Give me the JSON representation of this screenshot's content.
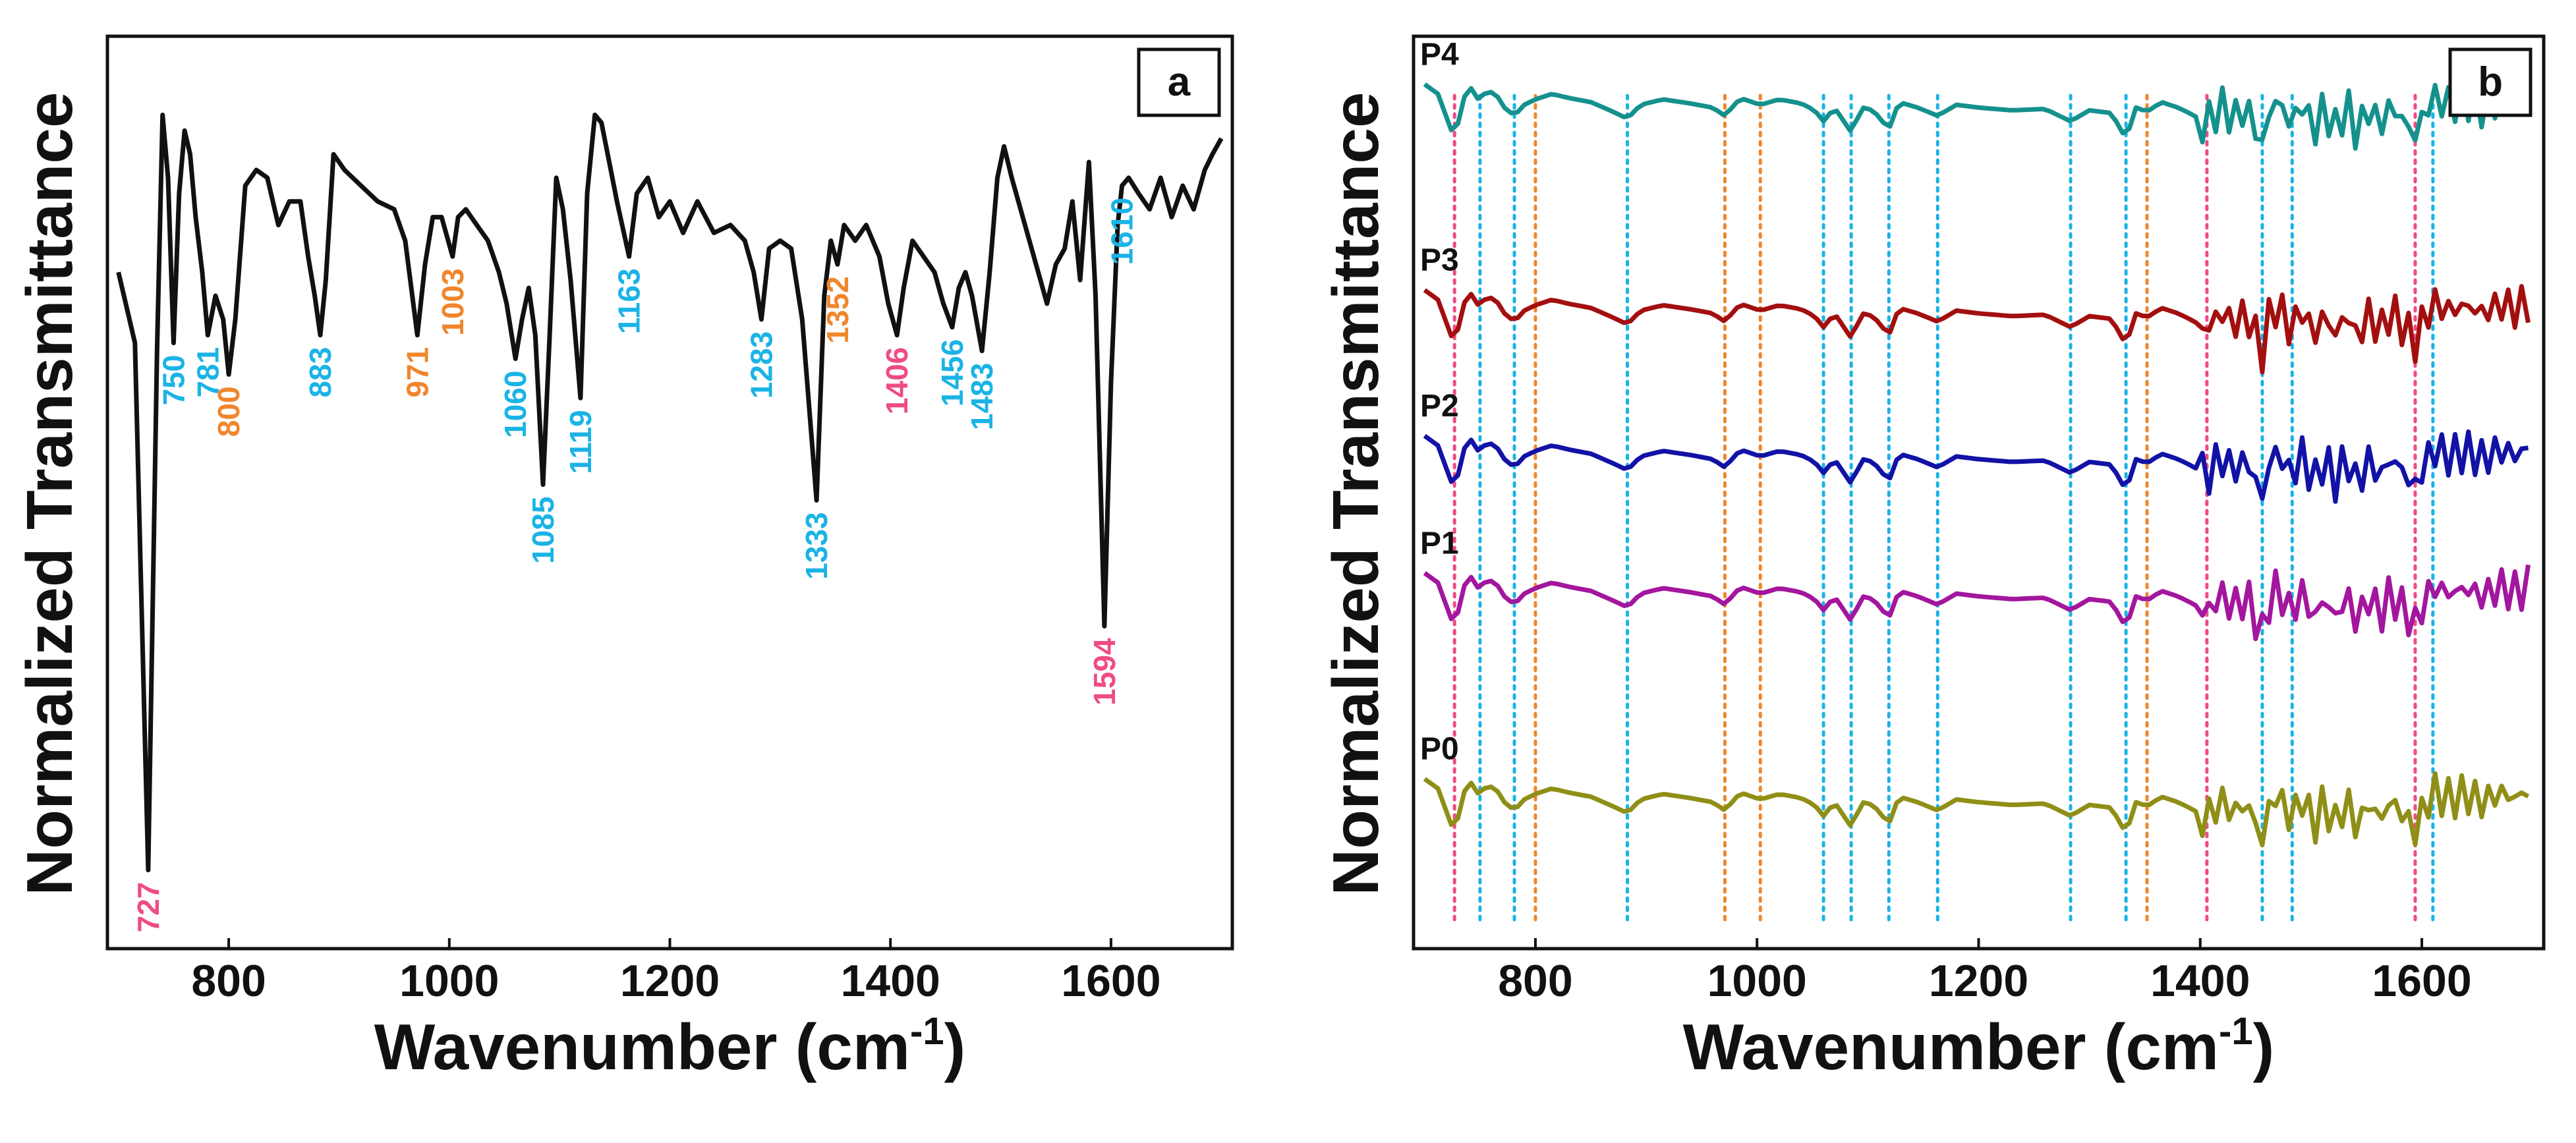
{
  "chart_data": [
    {
      "panel": "a",
      "type": "line",
      "panel_label": "a",
      "xlabel": "Wavenumber (cm",
      "xlabel_sup": "-1",
      "xlabel_close": ")",
      "ylabel": "Normalized Transmittance",
      "xlim": [
        690,
        1710
      ],
      "ylim": [
        -1.08,
        0.08
      ],
      "xticks": [
        800,
        1000,
        1200,
        1400,
        1600
      ],
      "xtick_labels": [
        "800",
        "1000",
        "1200",
        "1400",
        "1600"
      ],
      "color": "#111111",
      "series": [
        {
          "name": "spectrum",
          "points": [
            [
              700,
              -0.22
            ],
            [
              715,
              -0.31
            ],
            [
              727,
              -0.98
            ],
            [
              735,
              -0.32
            ],
            [
              740,
              -0.02
            ],
            [
              745,
              -0.1
            ],
            [
              750,
              -0.31
            ],
            [
              755,
              -0.12
            ],
            [
              760,
              -0.04
            ],
            [
              765,
              -0.07
            ],
            [
              770,
              -0.15
            ],
            [
              776,
              -0.22
            ],
            [
              781,
              -0.3
            ],
            [
              788,
              -0.25
            ],
            [
              795,
              -0.28
            ],
            [
              800,
              -0.35
            ],
            [
              806,
              -0.28
            ],
            [
              815,
              -0.11
            ],
            [
              825,
              -0.09
            ],
            [
              835,
              -0.1
            ],
            [
              845,
              -0.16
            ],
            [
              855,
              -0.13
            ],
            [
              865,
              -0.13
            ],
            [
              872,
              -0.2
            ],
            [
              878,
              -0.25
            ],
            [
              883,
              -0.3
            ],
            [
              888,
              -0.23
            ],
            [
              895,
              -0.07
            ],
            [
              905,
              -0.09
            ],
            [
              920,
              -0.11
            ],
            [
              935,
              -0.13
            ],
            [
              950,
              -0.14
            ],
            [
              960,
              -0.18
            ],
            [
              971,
              -0.3
            ],
            [
              978,
              -0.21
            ],
            [
              985,
              -0.15
            ],
            [
              993,
              -0.15
            ],
            [
              1003,
              -0.2
            ],
            [
              1008,
              -0.15
            ],
            [
              1015,
              -0.14
            ],
            [
              1025,
              -0.16
            ],
            [
              1035,
              -0.18
            ],
            [
              1045,
              -0.22
            ],
            [
              1052,
              -0.26
            ],
            [
              1060,
              -0.33
            ],
            [
              1066,
              -0.28
            ],
            [
              1072,
              -0.24
            ],
            [
              1078,
              -0.3
            ],
            [
              1085,
              -0.49
            ],
            [
              1091,
              -0.3
            ],
            [
              1097,
              -0.1
            ],
            [
              1103,
              -0.14
            ],
            [
              1110,
              -0.23
            ],
            [
              1119,
              -0.38
            ],
            [
              1125,
              -0.12
            ],
            [
              1132,
              -0.02
            ],
            [
              1138,
              -0.03
            ],
            [
              1145,
              -0.08
            ],
            [
              1152,
              -0.13
            ],
            [
              1163,
              -0.2
            ],
            [
              1170,
              -0.12
            ],
            [
              1180,
              -0.1
            ],
            [
              1190,
              -0.15
            ],
            [
              1200,
              -0.13
            ],
            [
              1212,
              -0.17
            ],
            [
              1225,
              -0.13
            ],
            [
              1240,
              -0.17
            ],
            [
              1255,
              -0.16
            ],
            [
              1268,
              -0.18
            ],
            [
              1276,
              -0.22
            ],
            [
              1283,
              -0.28
            ],
            [
              1290,
              -0.19
            ],
            [
              1300,
              -0.18
            ],
            [
              1310,
              -0.19
            ],
            [
              1320,
              -0.28
            ],
            [
              1333,
              -0.51
            ],
            [
              1340,
              -0.25
            ],
            [
              1346,
              -0.18
            ],
            [
              1352,
              -0.21
            ],
            [
              1358,
              -0.16
            ],
            [
              1368,
              -0.18
            ],
            [
              1378,
              -0.16
            ],
            [
              1390,
              -0.2
            ],
            [
              1398,
              -0.26
            ],
            [
              1406,
              -0.3
            ],
            [
              1412,
              -0.24
            ],
            [
              1420,
              -0.18
            ],
            [
              1430,
              -0.2
            ],
            [
              1440,
              -0.22
            ],
            [
              1448,
              -0.26
            ],
            [
              1456,
              -0.29
            ],
            [
              1462,
              -0.24
            ],
            [
              1468,
              -0.22
            ],
            [
              1474,
              -0.25
            ],
            [
              1483,
              -0.32
            ],
            [
              1490,
              -0.22
            ],
            [
              1497,
              -0.1
            ],
            [
              1503,
              -0.06
            ],
            [
              1510,
              -0.1
            ],
            [
              1518,
              -0.14
            ],
            [
              1526,
              -0.18
            ],
            [
              1534,
              -0.22
            ],
            [
              1542,
              -0.26
            ],
            [
              1550,
              -0.21
            ],
            [
              1558,
              -0.19
            ],
            [
              1565,
              -0.13
            ],
            [
              1572,
              -0.23
            ],
            [
              1580,
              -0.08
            ],
            [
              1586,
              -0.25
            ],
            [
              1594,
              -0.67
            ],
            [
              1600,
              -0.36
            ],
            [
              1606,
              -0.16
            ],
            [
              1610,
              -0.11
            ],
            [
              1616,
              -0.1
            ],
            [
              1625,
              -0.12
            ],
            [
              1635,
              -0.14
            ],
            [
              1645,
              -0.1
            ],
            [
              1655,
              -0.15
            ],
            [
              1665,
              -0.11
            ],
            [
              1675,
              -0.14
            ],
            [
              1685,
              -0.09
            ],
            [
              1692,
              -0.07
            ],
            [
              1700,
              -0.05
            ]
          ]
        }
      ],
      "annotations": [
        {
          "label": "727",
          "x": 727,
          "color": "#ef4b85"
        },
        {
          "label": "750",
          "x": 750,
          "color": "#1ab3e6"
        },
        {
          "label": "781",
          "x": 781,
          "color": "#1ab3e6"
        },
        {
          "label": "800",
          "x": 800,
          "color": "#f0862c"
        },
        {
          "label": "883",
          "x": 883,
          "color": "#1ab3e6"
        },
        {
          "label": "971",
          "x": 971,
          "color": "#f0862c"
        },
        {
          "label": "1003",
          "x": 1003,
          "color": "#f0862c"
        },
        {
          "label": "1060",
          "x": 1060,
          "color": "#1ab3e6"
        },
        {
          "label": "1085",
          "x": 1085,
          "color": "#1ab3e6"
        },
        {
          "label": "1119",
          "x": 1119,
          "color": "#1ab3e6"
        },
        {
          "label": "1163",
          "x": 1163,
          "color": "#1ab3e6"
        },
        {
          "label": "1283",
          "x": 1283,
          "color": "#1ab3e6"
        },
        {
          "label": "1333",
          "x": 1333,
          "color": "#1ab3e6"
        },
        {
          "label": "1352",
          "x": 1352,
          "color": "#f0862c"
        },
        {
          "label": "1406",
          "x": 1406,
          "color": "#ef4b85"
        },
        {
          "label": "1456",
          "x": 1456,
          "color": "#1ab3e6"
        },
        {
          "label": "1483",
          "x": 1483,
          "color": "#1ab3e6"
        },
        {
          "label": "1594",
          "x": 1594,
          "color": "#ef4b85"
        },
        {
          "label": "1610",
          "x": 1610,
          "color": "#1ab3e6"
        }
      ]
    },
    {
      "panel": "b",
      "type": "line",
      "panel_label": "b",
      "xlabel": "Wavenumber (cm",
      "xlabel_sup": "-1",
      "xlabel_close": ")",
      "ylabel": "Normalized Transmittance",
      "xlim": [
        690,
        1710
      ],
      "ylim": [
        -5.0,
        0.32
      ],
      "xticks": [
        800,
        1000,
        1200,
        1400,
        1600
      ],
      "xtick_labels": [
        "800",
        "1000",
        "1200",
        "1400",
        "1600"
      ],
      "reference_lines": [
        {
          "x": 727,
          "color": "#ef4b85"
        },
        {
          "x": 750,
          "color": "#1ab3e6"
        },
        {
          "x": 781,
          "color": "#1ab3e6"
        },
        {
          "x": 800,
          "color": "#f0862c"
        },
        {
          "x": 883,
          "color": "#1ab3e6"
        },
        {
          "x": 971,
          "color": "#f0862c"
        },
        {
          "x": 1003,
          "color": "#f0862c"
        },
        {
          "x": 1060,
          "color": "#1ab3e6"
        },
        {
          "x": 1085,
          "color": "#1ab3e6"
        },
        {
          "x": 1119,
          "color": "#1ab3e6"
        },
        {
          "x": 1163,
          "color": "#1ab3e6"
        },
        {
          "x": 1283,
          "color": "#1ab3e6"
        },
        {
          "x": 1333,
          "color": "#1ab3e6"
        },
        {
          "x": 1352,
          "color": "#f0862c"
        },
        {
          "x": 1406,
          "color": "#ef4b85"
        },
        {
          "x": 1456,
          "color": "#1ab3e6"
        },
        {
          "x": 1483,
          "color": "#1ab3e6"
        },
        {
          "x": 1594,
          "color": "#ef4b85"
        },
        {
          "x": 1610,
          "color": "#1ab3e6"
        }
      ],
      "series": [
        {
          "name": "P4",
          "color": "#15918d",
          "offset": 0.0
        },
        {
          "name": "P3",
          "color": "#a30f0f",
          "offset": -1.2
        },
        {
          "name": "P2",
          "color": "#1212a6",
          "offset": -2.05
        },
        {
          "name": "P1",
          "color": "#a3169e",
          "offset": -2.85
        },
        {
          "name": "P0",
          "color": "#8f8f18",
          "offset": -4.05
        }
      ],
      "shape_points": [
        [
          700,
          0.05
        ],
        [
          712,
          -0.02
        ],
        [
          727,
          -0.35
        ],
        [
          735,
          -0.05
        ],
        [
          742,
          0.02
        ],
        [
          750,
          -0.08
        ],
        [
          756,
          0.01
        ],
        [
          765,
          -0.03
        ],
        [
          772,
          -0.12
        ],
        [
          781,
          -0.18
        ],
        [
          790,
          -0.1
        ],
        [
          800,
          -0.06
        ],
        [
          815,
          -0.02
        ],
        [
          830,
          -0.05
        ],
        [
          850,
          -0.08
        ],
        [
          870,
          -0.15
        ],
        [
          883,
          -0.2
        ],
        [
          895,
          -0.1
        ],
        [
          915,
          -0.06
        ],
        [
          940,
          -0.09
        ],
        [
          960,
          -0.12
        ],
        [
          971,
          -0.18
        ],
        [
          985,
          -0.05
        ],
        [
          1003,
          -0.1
        ],
        [
          1020,
          -0.06
        ],
        [
          1040,
          -0.09
        ],
        [
          1052,
          -0.14
        ],
        [
          1060,
          -0.22
        ],
        [
          1070,
          -0.12
        ],
        [
          1085,
          -0.3
        ],
        [
          1095,
          -0.12
        ],
        [
          1105,
          -0.14
        ],
        [
          1119,
          -0.28
        ],
        [
          1128,
          -0.08
        ],
        [
          1145,
          -0.12
        ],
        [
          1163,
          -0.18
        ],
        [
          1180,
          -0.1
        ],
        [
          1200,
          -0.12
        ],
        [
          1230,
          -0.14
        ],
        [
          1260,
          -0.13
        ],
        [
          1283,
          -0.22
        ],
        [
          1300,
          -0.14
        ],
        [
          1320,
          -0.16
        ],
        [
          1333,
          -0.35
        ],
        [
          1342,
          -0.12
        ],
        [
          1352,
          -0.15
        ],
        [
          1365,
          -0.08
        ],
        [
          1380,
          -0.12
        ],
        [
          1395,
          -0.18
        ],
        [
          1406,
          -0.25
        ],
        [
          1418,
          -0.1
        ],
        [
          1430,
          -0.2
        ],
        [
          1442,
          -0.12
        ],
        [
          1456,
          -0.4
        ],
        [
          1465,
          -0.05
        ],
        [
          1472,
          -0.1
        ],
        [
          1483,
          -0.25
        ],
        [
          1492,
          -0.08
        ],
        [
          1502,
          -0.3
        ],
        [
          1512,
          -0.12
        ],
        [
          1522,
          -0.28
        ],
        [
          1532,
          -0.1
        ],
        [
          1542,
          -0.32
        ],
        [
          1552,
          -0.12
        ],
        [
          1562,
          -0.26
        ],
        [
          1572,
          -0.1
        ],
        [
          1582,
          -0.2
        ],
        [
          1594,
          -0.33
        ],
        [
          1604,
          -0.12
        ],
        [
          1612,
          -0.05
        ],
        [
          1625,
          -0.1
        ],
        [
          1640,
          -0.06
        ],
        [
          1655,
          -0.12
        ],
        [
          1670,
          -0.05
        ],
        [
          1685,
          -0.09
        ],
        [
          1700,
          -0.02
        ]
      ]
    }
  ]
}
